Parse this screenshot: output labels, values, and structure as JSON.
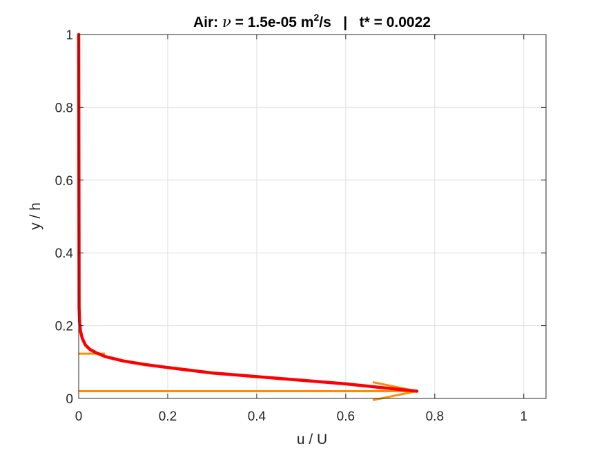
{
  "chart_data": {
    "type": "line",
    "title": {
      "prefix": "Air: ",
      "nu_symbol": "ν",
      "middle": " = 1.5e-05 m",
      "sup": "2",
      "suffix": "/s   |   t* = 0.0022"
    },
    "xlabel": "u / U",
    "ylabel": "y / h",
    "xlim": [
      0,
      1.05
    ],
    "ylim": [
      0,
      1
    ],
    "xticks": [
      0,
      0.2,
      0.4,
      0.6,
      0.8,
      1
    ],
    "xtick_labels": [
      "0",
      "0.2",
      "0.4",
      "0.6",
      "0.8",
      "1"
    ],
    "yticks": [
      0,
      0.2,
      0.4,
      0.6,
      0.8,
      1
    ],
    "ytick_labels": [
      "0",
      "0.2",
      "0.4",
      "0.6",
      "0.8",
      "1"
    ],
    "grid": true,
    "series": [
      {
        "color": "#ff0000",
        "x": [
          0.76,
          0.68,
          0.6,
          0.5,
          0.4,
          0.3,
          0.2,
          0.15,
          0.1,
          0.06,
          0.04,
          0.025,
          0.015,
          0.008,
          0.004,
          0.002,
          0.001,
          0.0
        ],
        "y": [
          0.02,
          0.03,
          0.04,
          0.05,
          0.06,
          0.07,
          0.085,
          0.093,
          0.103,
          0.115,
          0.125,
          0.135,
          0.147,
          0.165,
          0.185,
          0.21,
          0.25,
          1.0
        ]
      }
    ],
    "annotations": [
      {
        "type": "arrow",
        "color": "#ff8c00",
        "y": 0.02,
        "x_start": 0,
        "x_end": 0.76
      },
      {
        "type": "arrow",
        "color": "#ff8c00",
        "y": 0.123,
        "x_start": 0,
        "x_end": 0.059
      }
    ]
  }
}
